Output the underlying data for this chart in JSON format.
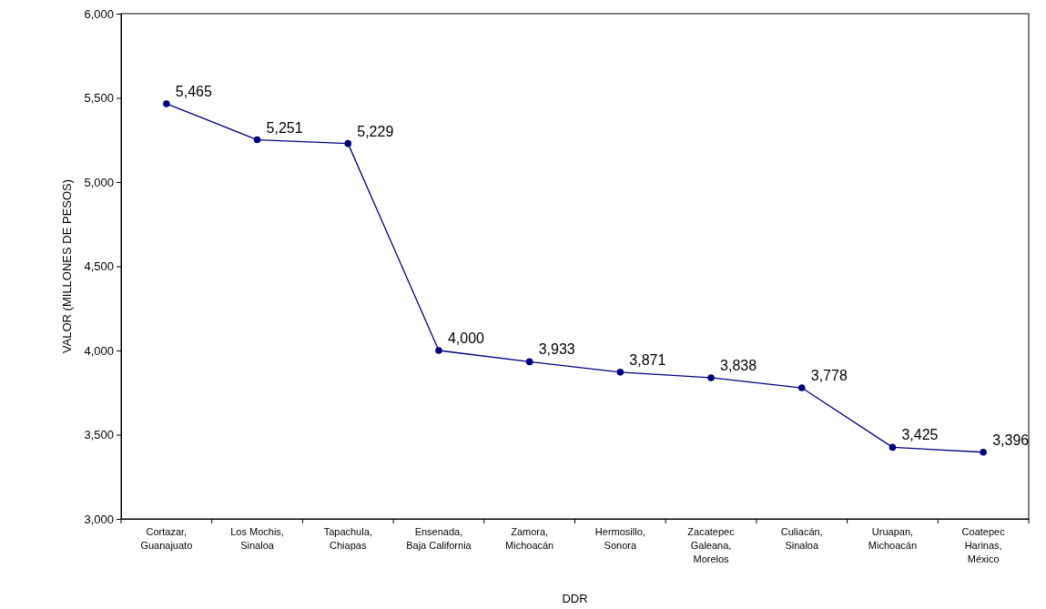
{
  "chart_data": {
    "type": "line",
    "xlabel": "DDR",
    "ylabel": "VALOR (MILLONES DE PESOS)",
    "categories": [
      "Cortazar, Guanajuato",
      "Los Mochis, Sinaloa",
      "Tapachula, Chiapas",
      "Ensenada, Baja California",
      "Zamora, Michoacán",
      "Hermosillo, Sonora",
      "Zacatepec Galeana, Morelos",
      "Culiacán, Sinaloa",
      "Uruapan, Michoacán",
      "Coatepec Harinas, México"
    ],
    "series": [
      {
        "color": "#000080",
        "values": [
          5465,
          5251,
          5229,
          4000,
          3933,
          3871,
          3838,
          3778,
          3425,
          3396
        ],
        "value_labels": [
          "5,465",
          "5,251",
          "5,229",
          "4,000",
          "3,933",
          "3,871",
          "3,838",
          "3,778",
          "3,425",
          "3,396"
        ]
      }
    ],
    "ylim": [
      3000,
      6000
    ],
    "yticks": [
      {
        "value": 3000,
        "label": "3,000"
      },
      {
        "value": 3500,
        "label": "3,500"
      },
      {
        "value": 4000,
        "label": "4,000"
      },
      {
        "value": 4500,
        "label": "4,500"
      },
      {
        "value": 5000,
        "label": "5,000"
      },
      {
        "value": 5500,
        "label": "5,500"
      },
      {
        "value": 6000,
        "label": "6,000"
      }
    ],
    "marker": "circle",
    "line_style": "solid",
    "grid": false
  }
}
